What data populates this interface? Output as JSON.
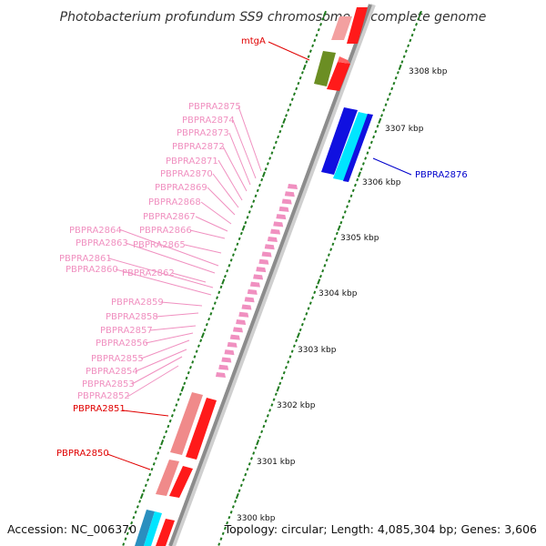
{
  "title": "Photobacterium profundum SS9 chromosome 1, complete genome",
  "footer": {
    "accession": "Accession: NC_006370",
    "summary": "Topology: circular; Length: 4,085,304 bp; Genes: 3,606"
  },
  "colors": {
    "backbone": "#8c8c8c",
    "tick": "#1f7a1f",
    "pink": "#f090c0",
    "red": "#ff1a1a",
    "salmon": "#f08a8a",
    "olive": "#6b8e23",
    "blue": "#1010e0",
    "cyan": "#00e5ff",
    "teal": "#2a8fbf"
  },
  "kbp_labels": [
    "3308 kbp",
    "3307 kbp",
    "3306 kbp",
    "3305 kbp",
    "3304 kbp",
    "3303 kbp",
    "3302 kbp",
    "3301 kbp",
    "3300 kbp"
  ],
  "gene_labels_pink": [
    "PBPRA2875",
    "PBPRA2874",
    "PBPRA2873",
    "PBPRA2872",
    "PBPRA2871",
    "PBPRA2870",
    "PBPRA2869",
    "PBPRA2868",
    "PBPRA2867",
    "PBPRA2866",
    "PBPRA2864",
    "PBPRA2863",
    "PBPRA2865",
    "PBPRA2861",
    "PBPRA2860",
    "PBPRA2862",
    "PBPRA2859",
    "PBPRA2858",
    "PBPRA2857",
    "PBPRA2856",
    "PBPRA2855",
    "PBPRA2854",
    "PBPRA2853",
    "PBPRA2852"
  ],
  "gene_labels_red": [
    "mtgA",
    "PBPRA2851",
    "PBPRA2850"
  ],
  "gene_labels_blue": [
    "PBPRA2876"
  ]
}
